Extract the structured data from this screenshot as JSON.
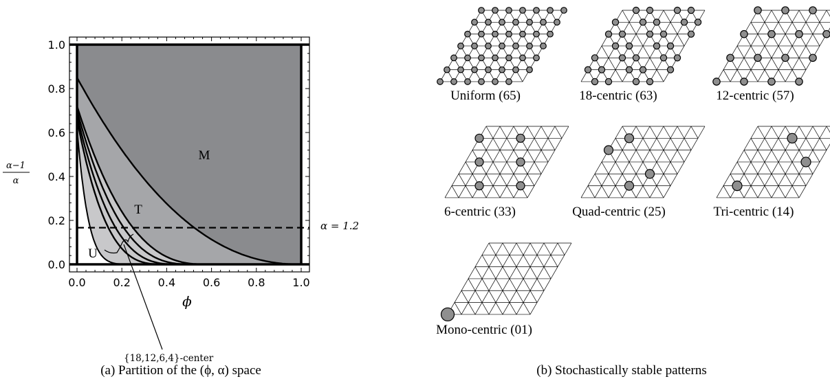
{
  "panel_a": {
    "caption": "(a) Partition of the (ϕ, α) space",
    "x_axis_label": "ϕ",
    "y_axis_label_num": "α−1",
    "y_axis_label_den": "α",
    "x_ticks": [
      "0.0",
      "0.2",
      "0.4",
      "0.6",
      "0.8",
      "1.0"
    ],
    "y_ticks": [
      "0.0",
      "0.2",
      "0.4",
      "0.6",
      "0.8",
      "1.0"
    ],
    "region_labels": {
      "m": "M",
      "t": "T",
      "u": "U"
    },
    "dashed_line_label": "α = 1.2",
    "dashed_line_value": 0.1667,
    "callout_label": "{18,12,6,4}-center",
    "colors": {
      "outer": "#8a8b8e",
      "t_region": "#a5a6a9",
      "u_region": "#c8c8ca",
      "background": "#ffffff"
    }
  },
  "panel_b": {
    "caption": "(b) Stochastically stable patterns",
    "patterns": [
      {
        "name": "Uniform (65)"
      },
      {
        "name": "18-centric (63)"
      },
      {
        "name": "12-centric (57)"
      },
      {
        "name": "6-centric (33)"
      },
      {
        "name": "Quad-centric (25)"
      },
      {
        "name": "Tri-centric (14)"
      },
      {
        "name": "Mono-centric (01)"
      }
    ],
    "colors": {
      "node_fill": "#8f8f8f",
      "grid": "#000000"
    }
  }
}
